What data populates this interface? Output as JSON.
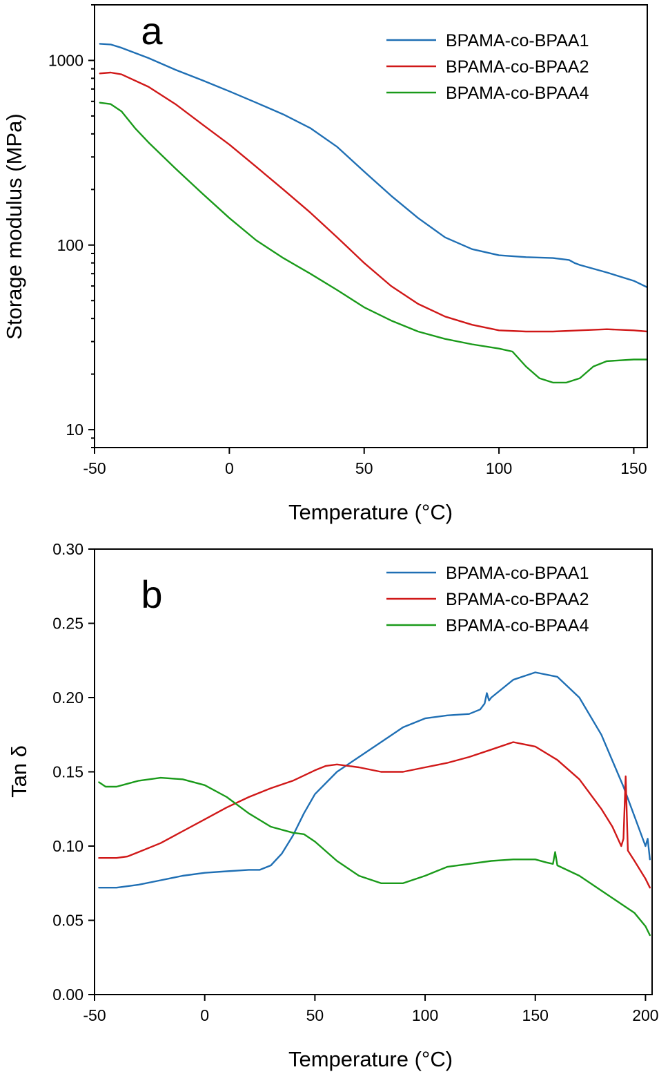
{
  "chart_data": [
    {
      "type": "line",
      "panel_label": "a",
      "xlabel": "Temperature (°C)",
      "ylabel": "Storage modulus (MPa)",
      "xlim": [
        -50,
        155
      ],
      "ylim": [
        8,
        2000
      ],
      "yscale": "log",
      "xticks": [
        -50,
        0,
        50,
        100,
        150
      ],
      "xtick_labels": [
        "-50",
        "0",
        "50",
        "100",
        "150"
      ],
      "yticks": [
        10,
        100,
        1000
      ],
      "ytick_labels": [
        "10",
        "100",
        "1000"
      ],
      "grid": false,
      "legend": "top-right",
      "series": [
        {
          "name": "BPAMA-co-BPAA1",
          "color": "#1f6fb4",
          "x": [
            -48,
            -44,
            -40,
            -30,
            -20,
            -10,
            0,
            10,
            20,
            30,
            40,
            50,
            60,
            70,
            80,
            90,
            100,
            110,
            120,
            126,
            128,
            130,
            140,
            150,
            155
          ],
          "y": [
            1230,
            1220,
            1170,
            1030,
            890,
            780,
            680,
            590,
            510,
            430,
            340,
            250,
            185,
            140,
            110,
            95,
            88,
            86,
            85,
            83,
            80,
            78,
            71,
            64,
            59
          ]
        },
        {
          "name": "BPAMA-co-BPAA2",
          "color": "#d01818",
          "x": [
            -48,
            -44,
            -40,
            -30,
            -20,
            -10,
            0,
            10,
            20,
            30,
            40,
            50,
            60,
            70,
            80,
            90,
            100,
            110,
            120,
            130,
            140,
            150,
            155
          ],
          "y": [
            850,
            860,
            840,
            720,
            580,
            450,
            350,
            265,
            200,
            150,
            110,
            80,
            60,
            48,
            41,
            37,
            34.5,
            34,
            34,
            34.5,
            35,
            34.5,
            34
          ]
        },
        {
          "name": "BPAMA-co-BPAA4",
          "color": "#1a9a1a",
          "x": [
            -48,
            -44,
            -40,
            -35,
            -30,
            -20,
            -10,
            0,
            10,
            20,
            30,
            40,
            50,
            60,
            70,
            80,
            90,
            100,
            105,
            110,
            115,
            120,
            125,
            130,
            135,
            140,
            150,
            155
          ],
          "y": [
            590,
            580,
            530,
            430,
            360,
            260,
            190,
            140,
            106,
            85,
            70,
            57,
            46,
            39,
            34,
            31,
            29,
            27.5,
            26.5,
            22,
            19,
            18,
            18,
            19,
            22,
            23.5,
            24,
            24
          ]
        }
      ]
    },
    {
      "type": "line",
      "panel_label": "b",
      "xlabel": "Temperature (°C)",
      "ylabel": "Tan δ",
      "xlim": [
        -50,
        203
      ],
      "ylim": [
        0.0,
        0.3
      ],
      "xticks": [
        -50,
        0,
        50,
        100,
        150,
        200
      ],
      "xtick_labels": [
        "-50",
        "0",
        "50",
        "100",
        "150",
        "200"
      ],
      "yticks": [
        0.0,
        0.05,
        0.1,
        0.15,
        0.2,
        0.25,
        0.3
      ],
      "ytick_labels": [
        "0.00",
        "0.05",
        "0.10",
        "0.15",
        "0.20",
        "0.25",
        "0.30"
      ],
      "grid": false,
      "legend": "top-right",
      "series": [
        {
          "name": "BPAMA-co-BPAA1",
          "color": "#1f6fb4",
          "x": [
            -48,
            -40,
            -30,
            -20,
            -10,
            0,
            10,
            20,
            25,
            30,
            35,
            40,
            45,
            50,
            60,
            70,
            80,
            90,
            100,
            110,
            120,
            125,
            127,
            128,
            129,
            130,
            140,
            150,
            160,
            170,
            180,
            190,
            195,
            200,
            201,
            202
          ],
          "y": [
            0.072,
            0.072,
            0.074,
            0.077,
            0.08,
            0.082,
            0.083,
            0.084,
            0.084,
            0.087,
            0.095,
            0.107,
            0.122,
            0.135,
            0.15,
            0.16,
            0.17,
            0.18,
            0.186,
            0.188,
            0.189,
            0.192,
            0.196,
            0.203,
            0.198,
            0.2,
            0.212,
            0.217,
            0.214,
            0.2,
            0.175,
            0.14,
            0.12,
            0.1,
            0.105,
            0.091
          ]
        },
        {
          "name": "BPAMA-co-BPAA2",
          "color": "#d01818",
          "x": [
            -48,
            -40,
            -35,
            -30,
            -20,
            -10,
            0,
            10,
            20,
            30,
            40,
            50,
            55,
            60,
            70,
            80,
            90,
            100,
            110,
            120,
            130,
            140,
            150,
            160,
            170,
            180,
            185,
            189,
            190,
            191,
            192,
            195,
            200,
            202
          ],
          "y": [
            0.092,
            0.092,
            0.093,
            0.096,
            0.102,
            0.11,
            0.118,
            0.126,
            0.133,
            0.139,
            0.144,
            0.151,
            0.154,
            0.155,
            0.153,
            0.15,
            0.15,
            0.153,
            0.156,
            0.16,
            0.165,
            0.17,
            0.167,
            0.158,
            0.145,
            0.125,
            0.113,
            0.1,
            0.105,
            0.147,
            0.097,
            0.09,
            0.078,
            0.072
          ]
        },
        {
          "name": "BPAMA-co-BPAA4",
          "color": "#1a9a1a",
          "x": [
            -48,
            -45,
            -40,
            -35,
            -30,
            -20,
            -10,
            0,
            10,
            20,
            30,
            40,
            45,
            50,
            60,
            70,
            80,
            90,
            100,
            110,
            120,
            130,
            140,
            150,
            155,
            158,
            159,
            160,
            170,
            180,
            190,
            195,
            200,
            202
          ],
          "y": [
            0.143,
            0.14,
            0.14,
            0.142,
            0.144,
            0.146,
            0.145,
            0.141,
            0.133,
            0.122,
            0.113,
            0.109,
            0.108,
            0.103,
            0.09,
            0.08,
            0.075,
            0.075,
            0.08,
            0.086,
            0.088,
            0.09,
            0.091,
            0.091,
            0.089,
            0.088,
            0.096,
            0.087,
            0.08,
            0.07,
            0.06,
            0.055,
            0.046,
            0.04
          ]
        }
      ]
    }
  ]
}
